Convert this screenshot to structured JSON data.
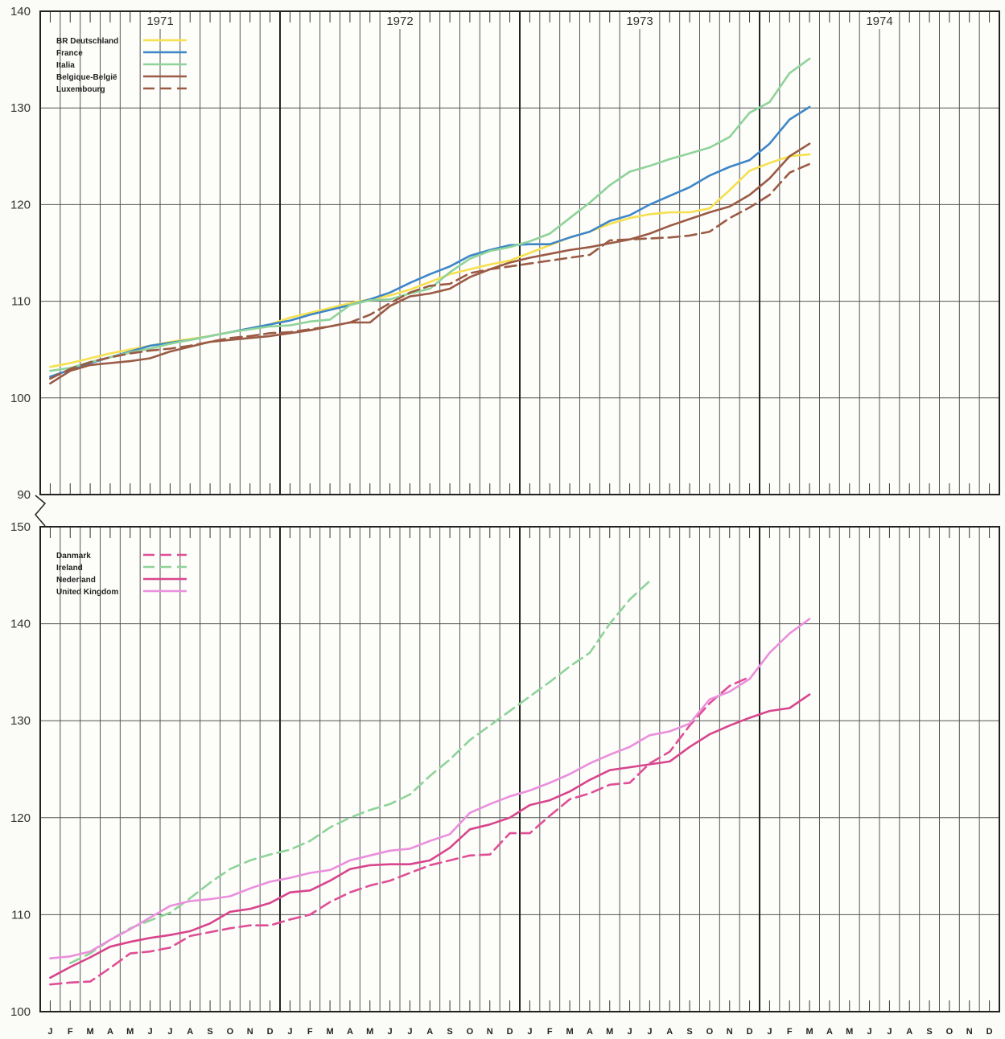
{
  "colors": {
    "germany": "#f6e04e",
    "france": "#3d86c8",
    "italia": "#8fd39a",
    "belgium": "#9a5a44",
    "luxembourg": "#9a5a44",
    "danmark": "#df4f95",
    "ireland": "#8fd39a",
    "nederland": "#d8458c",
    "uk": "#ea8fdc"
  },
  "chart_data": [
    {
      "type": "line",
      "years": [
        "1971",
        "1972",
        "1973",
        "1974"
      ],
      "month_labels": [
        "J",
        "F",
        "M",
        "A",
        "M",
        "J",
        "J",
        "A",
        "S",
        "O",
        "N",
        "D",
        "J",
        "F",
        "M",
        "A",
        "M",
        "J",
        "J",
        "A",
        "S",
        "O",
        "N",
        "D",
        "J",
        "F",
        "M",
        "A",
        "M",
        "J",
        "J",
        "A",
        "S",
        "O",
        "N",
        "D",
        "J",
        "F",
        "M",
        "A",
        "M",
        "J",
        "J",
        "A",
        "S",
        "O",
        "N",
        "D"
      ],
      "y_ticks": [
        90,
        100,
        110,
        120,
        130,
        140
      ],
      "ylim": [
        90,
        140
      ],
      "axis_break": true,
      "grid": true,
      "legend_position": "top-left",
      "series": [
        {
          "name": "BR Deutschland",
          "color_key": "germany",
          "dash": false,
          "start_month": 0,
          "values": [
            103.2,
            103.6,
            104.1,
            104.6,
            105.0,
            105.4,
            105.8,
            106.1,
            106.4,
            106.8,
            107.2,
            107.6,
            108.3,
            108.8,
            109.3,
            109.8,
            110.2,
            110.6,
            111.2,
            112.0,
            112.8,
            113.3,
            113.8,
            114.2,
            115.0,
            115.8,
            116.6,
            117.2,
            118.0,
            118.6,
            119.0,
            119.2,
            119.2,
            119.6,
            121.5,
            123.5,
            124.3,
            125.0,
            125.2
          ]
        },
        {
          "name": "France",
          "color_key": "france",
          "dash": false,
          "start_month": 0,
          "values": [
            102.2,
            102.9,
            103.6,
            104.2,
            104.8,
            105.4,
            105.7,
            106.0,
            106.4,
            106.8,
            107.2,
            107.6,
            108.0,
            108.6,
            109.1,
            109.6,
            110.2,
            110.9,
            111.9,
            112.8,
            113.6,
            114.7,
            115.3,
            115.8,
            115.9,
            115.9,
            116.6,
            117.2,
            118.3,
            118.9,
            120.0,
            120.9,
            121.8,
            123.0,
            123.9,
            124.6,
            126.3,
            128.8,
            130.1
          ]
        },
        {
          "name": "Italia",
          "color_key": "italia",
          "dash": false,
          "start_month": 0,
          "values": [
            102.8,
            103.1,
            103.7,
            104.2,
            104.7,
            105.1,
            105.6,
            106.0,
            106.4,
            106.8,
            107.1,
            107.4,
            107.5,
            107.9,
            108.1,
            109.6,
            110.1,
            110.2,
            110.8,
            111.3,
            113.0,
            114.4,
            115.2,
            115.6,
            116.2,
            117.0,
            118.6,
            120.2,
            122.0,
            123.4,
            124.0,
            124.7,
            125.3,
            125.9,
            127.0,
            129.5,
            130.6,
            133.6,
            135.1
          ]
        },
        {
          "name": "Belgique-België",
          "color_key": "belgium",
          "dash": false,
          "start_month": 0,
          "values": [
            101.5,
            102.8,
            103.4,
            103.6,
            103.8,
            104.1,
            104.8,
            105.3,
            105.8,
            106.0,
            106.2,
            106.4,
            106.7,
            107.0,
            107.4,
            107.8,
            107.8,
            109.5,
            110.5,
            110.8,
            111.3,
            112.5,
            113.3,
            114.0,
            114.5,
            114.9,
            115.3,
            115.6,
            116.0,
            116.4,
            117.0,
            117.8,
            118.5,
            119.2,
            119.8,
            121.0,
            122.7,
            125.0,
            126.3
          ]
        },
        {
          "name": "Luxembourg",
          "color_key": "luxembourg",
          "dash": true,
          "start_month": 0,
          "values": [
            102.0,
            103.0,
            103.7,
            104.2,
            104.6,
            104.9,
            105.1,
            105.4,
            105.8,
            106.2,
            106.4,
            106.7,
            106.8,
            107.1,
            107.4,
            107.8,
            108.6,
            109.8,
            110.9,
            111.6,
            111.8,
            112.9,
            113.3,
            113.6,
            113.9,
            114.2,
            114.5,
            114.8,
            116.3,
            116.4,
            116.5,
            116.6,
            116.8,
            117.2,
            118.6,
            119.7,
            121.0,
            123.3,
            124.2
          ]
        }
      ]
    },
    {
      "type": "line",
      "y_ticks": [
        100,
        110,
        120,
        130,
        140,
        150
      ],
      "ylim": [
        100,
        150
      ],
      "grid": true,
      "legend_position": "top-left",
      "series": [
        {
          "name": "Danmark",
          "color_key": "danmark",
          "dash": true,
          "start_month": 0,
          "values": [
            102.8,
            103.0,
            103.1,
            104.5,
            106.0,
            106.2,
            106.6,
            107.8,
            108.2,
            108.6,
            108.9,
            108.9,
            109.5,
            110.0,
            111.3,
            112.3,
            113.0,
            113.5,
            114.3,
            115.1,
            115.6,
            116.1,
            116.2,
            118.4,
            118.4,
            120.2,
            121.9,
            122.5,
            123.4,
            123.6,
            125.6,
            126.8,
            129.5,
            131.8,
            133.6,
            134.5
          ]
        },
        {
          "name": "Ireland",
          "color_key": "ireland",
          "dash": true,
          "start_month": 1,
          "values": [
            105.0,
            106.0,
            107.4,
            108.6,
            109.4,
            110.2,
            111.7,
            113.3,
            114.7,
            115.6,
            116.2,
            116.7,
            117.6,
            119.0,
            120.0,
            120.8,
            121.4,
            122.4,
            124.3,
            126.0,
            128.0,
            129.5,
            131.0,
            132.5,
            134.0,
            135.6,
            137.0,
            140.0,
            142.5,
            144.4
          ]
        },
        {
          "name": "Nederland",
          "color_key": "nederland",
          "dash": false,
          "start_month": 0,
          "values": [
            103.5,
            104.6,
            105.6,
            106.7,
            107.2,
            107.6,
            107.9,
            108.3,
            109.1,
            110.3,
            110.6,
            111.2,
            112.3,
            112.5,
            113.5,
            114.7,
            115.1,
            115.2,
            115.2,
            115.6,
            116.9,
            118.8,
            119.3,
            120.0,
            121.3,
            121.8,
            122.7,
            123.9,
            124.9,
            125.2,
            125.5,
            125.8,
            127.3,
            128.6,
            129.5,
            130.3,
            131.0,
            131.3,
            132.7
          ]
        },
        {
          "name": "United Kingdom",
          "color_key": "uk",
          "dash": false,
          "start_month": 0,
          "values": [
            105.5,
            105.7,
            106.2,
            107.4,
            108.5,
            109.7,
            110.9,
            111.4,
            111.6,
            111.9,
            112.7,
            113.4,
            113.8,
            114.3,
            114.6,
            115.6,
            116.1,
            116.6,
            116.8,
            117.6,
            118.3,
            120.5,
            121.4,
            122.2,
            122.8,
            123.6,
            124.5,
            125.6,
            126.5,
            127.3,
            128.5,
            128.9,
            129.7,
            132.2,
            133.0,
            134.3,
            137.0,
            139.0,
            140.5
          ]
        }
      ]
    }
  ]
}
